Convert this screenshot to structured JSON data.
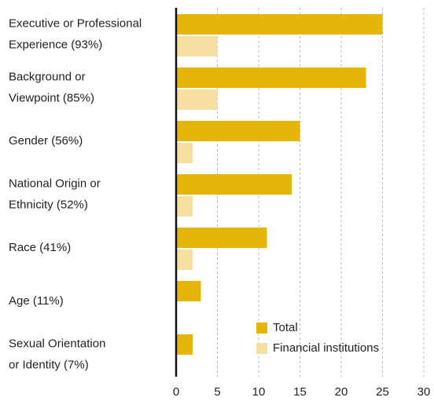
{
  "chart_data": {
    "type": "bar",
    "orientation": "horizontal",
    "categories": [
      [
        "Executive or Professional",
        "Experience (93%)"
      ],
      [
        "Background or",
        "Viewpoint (85%)"
      ],
      [
        "Gender (56%)"
      ],
      [
        "National Origin or",
        "Ethnicity (52%)"
      ],
      [
        "Race (41%)"
      ],
      [
        "Age (11%)"
      ],
      [
        "Sexual Orientation",
        "or Identity (7%)"
      ]
    ],
    "series": [
      {
        "name": "Total",
        "color": "#e5b50a",
        "values": [
          25,
          23,
          15,
          14,
          11,
          3,
          2
        ]
      },
      {
        "name": "Financial institutions",
        "color": "#f6dfa2",
        "values": [
          5,
          5,
          2,
          2,
          2,
          0,
          0
        ]
      }
    ],
    "xlim": [
      0,
      30
    ],
    "xticks": [
      0,
      5,
      10,
      15,
      20,
      25,
      30
    ],
    "grid": true,
    "legend": "lower right"
  }
}
